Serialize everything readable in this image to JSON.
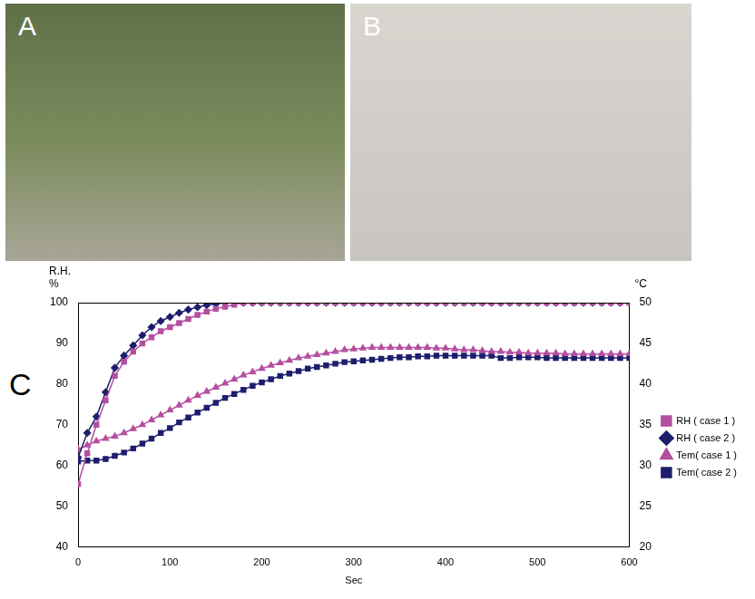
{
  "panels": [
    {
      "panel": "A"
    },
    {
      "panel": "B"
    }
  ],
  "chart_data": {
    "panel": "C",
    "type": "line",
    "x": [
      0,
      10,
      20,
      30,
      40,
      50,
      60,
      70,
      80,
      90,
      100,
      110,
      120,
      130,
      140,
      150,
      160,
      170,
      180,
      190,
      200,
      210,
      220,
      230,
      240,
      250,
      260,
      270,
      280,
      290,
      300,
      310,
      320,
      330,
      340,
      350,
      360,
      370,
      380,
      390,
      400,
      410,
      420,
      430,
      440,
      450,
      460,
      470,
      480,
      490,
      500,
      510,
      520,
      530,
      540,
      550,
      560,
      570,
      580,
      590,
      600
    ],
    "series": [
      {
        "name": "RH ( case 1 )",
        "color": "#b44fa0",
        "marker": "square",
        "values": [
          55.5,
          63,
          70,
          76,
          82,
          85.5,
          88,
          90,
          91.5,
          93,
          94,
          95,
          96,
          97,
          97.8,
          98.5,
          99,
          99.5,
          100,
          100,
          100,
          100,
          100,
          100,
          100,
          100,
          100,
          100,
          100,
          100,
          100,
          100,
          100,
          100,
          100,
          100,
          100,
          100,
          100,
          100,
          100,
          100,
          100,
          100,
          100,
          100,
          100,
          100,
          100,
          100,
          100,
          100,
          100,
          100,
          100,
          100,
          100,
          100,
          100,
          100,
          100
        ]
      },
      {
        "name": "RH ( case 2 )",
        "color": "#1e1e6e",
        "marker": "diamond",
        "values": [
          62,
          68,
          72,
          78,
          84,
          87,
          89.5,
          92,
          94,
          95.5,
          96.5,
          97.5,
          98.3,
          98.9,
          99.4,
          99.7,
          100,
          100,
          100,
          100,
          100,
          100,
          100,
          100,
          100,
          100,
          100,
          100,
          100,
          100,
          100,
          100,
          100,
          100,
          100,
          100,
          100,
          100,
          100,
          100,
          100,
          100,
          100,
          100,
          100,
          100,
          100,
          100,
          100,
          100,
          100,
          100,
          100,
          100,
          100,
          100,
          100,
          100,
          100,
          100,
          100
        ]
      },
      {
        "name": "Tem( case 1 )",
        "color": "#b44fa0",
        "marker": "triangle",
        "axis": "y2",
        "values": [
          32,
          32.5,
          33,
          33.3,
          33.6,
          34,
          34.5,
          35,
          35.6,
          36.2,
          36.8,
          37.4,
          38,
          38.6,
          39.1,
          39.6,
          40.1,
          40.6,
          41.1,
          41.5,
          41.9,
          42.3,
          42.6,
          42.9,
          43.2,
          43.4,
          43.6,
          43.8,
          44,
          44.2,
          44.3,
          44.4,
          44.5,
          44.5,
          44.5,
          44.5,
          44.5,
          44.5,
          44.5,
          44.4,
          44.4,
          44.3,
          44.2,
          44.2,
          44.1,
          44,
          44,
          43.9,
          43.9,
          43.8,
          43.8,
          43.8,
          43.8,
          43.7,
          43.7,
          43.7,
          43.7,
          43.7,
          43.7,
          43.7,
          43.7
        ]
      },
      {
        "name": "Tem( case 2 )",
        "color": "#1e1e6e",
        "marker": "square",
        "axis": "y2",
        "values": [
          30.5,
          30.6,
          30.6,
          30.8,
          31.2,
          31.6,
          32.1,
          32.7,
          33.3,
          34,
          34.6,
          35.3,
          35.9,
          36.5,
          37.1,
          37.7,
          38.3,
          38.8,
          39.3,
          39.8,
          40.2,
          40.6,
          41,
          41.3,
          41.6,
          41.9,
          42.1,
          42.3,
          42.5,
          42.7,
          42.8,
          42.9,
          43,
          43.1,
          43.2,
          43.3,
          43.3,
          43.4,
          43.4,
          43.5,
          43.5,
          43.5,
          43.5,
          43.5,
          43.5,
          43.5,
          43.2,
          43.2,
          43.3,
          43.3,
          43.3,
          43.2,
          43.2,
          43.2,
          43.2,
          43.2,
          43.2,
          43.2,
          43.2,
          43.2,
          43.2
        ]
      }
    ],
    "x_label": "Sec",
    "y_label": [
      "R.H.",
      "%"
    ],
    "y2_label": "°C",
    "xlim": [
      0,
      600
    ],
    "xticks": [
      0,
      100,
      200,
      300,
      400,
      500,
      600
    ],
    "ylim": [
      40,
      100
    ],
    "yticks": [
      40,
      50,
      60,
      70,
      80,
      90,
      100
    ],
    "y2lim": [
      20,
      50
    ],
    "y2ticks": [
      20,
      25,
      30,
      35,
      40,
      45,
      50
    ],
    "grid": false,
    "legend": "right"
  }
}
